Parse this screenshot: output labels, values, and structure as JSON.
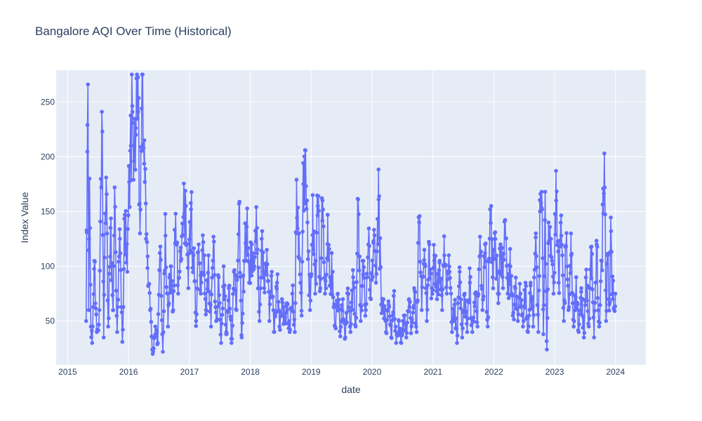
{
  "chart_data": {
    "type": "line",
    "mode": "lines+markers",
    "title": "Bangalore AQI Over Time (Historical)",
    "xlabel": "date",
    "ylabel": "Index Value",
    "x_ticks": [
      "2015",
      "2016",
      "2017",
      "2018",
      "2019",
      "2020",
      "2021",
      "2022",
      "2023",
      "2024"
    ],
    "y_ticks": [
      50,
      100,
      150,
      200,
      250
    ],
    "xlim": [
      "2014-10-24",
      "2024-07-01"
    ],
    "ylim": [
      10,
      279
    ],
    "grid": true,
    "legend": "none",
    "colors": {
      "series": "#636efa",
      "plot_bg": "#e5ecf6",
      "paper_bg": "#ffffff",
      "text": "#2a3f5f"
    },
    "series": [
      {
        "date_start": "2015-04-22",
        "date_end": "2023-12-31",
        "keypoints": [
          [
            "2015-04-22",
            50
          ],
          [
            "2015-04-26",
            131
          ],
          [
            "2015-04-30",
            229
          ],
          [
            "2015-05-03",
            266
          ],
          [
            "2015-05-07",
            60
          ],
          [
            "2015-05-12",
            180
          ],
          [
            "2015-05-20",
            45
          ],
          [
            "2015-05-28",
            30
          ],
          [
            "2015-06-10",
            105
          ],
          [
            "2015-06-25",
            40
          ],
          [
            "2015-07-10",
            60
          ],
          [
            "2015-07-25",
            241
          ],
          [
            "2015-08-05",
            35
          ],
          [
            "2015-08-20",
            181
          ],
          [
            "2015-09-01",
            45
          ],
          [
            "2015-09-15",
            135
          ],
          [
            "2015-10-01",
            60
          ],
          [
            "2015-10-10",
            172
          ],
          [
            "2015-10-25",
            40
          ],
          [
            "2015-11-10",
            125
          ],
          [
            "2015-11-25",
            31
          ],
          [
            "2015-12-10",
            147
          ],
          [
            "2015-12-25",
            95
          ],
          [
            "2016-01-05",
            177
          ],
          [
            "2016-01-15",
            210
          ],
          [
            "2016-01-25",
            241
          ],
          [
            "2016-02-05",
            210
          ],
          [
            "2016-02-15",
            220
          ],
          [
            "2016-02-28",
            241
          ],
          [
            "2016-03-10",
            130
          ],
          [
            "2016-03-20",
            244
          ],
          [
            "2016-04-05",
            215
          ],
          [
            "2016-04-15",
            125
          ],
          [
            "2016-04-25",
            109
          ],
          [
            "2016-05-10",
            60
          ],
          [
            "2016-05-25",
            20
          ],
          [
            "2016-06-10",
            45
          ],
          [
            "2016-06-25",
            30
          ],
          [
            "2016-07-10",
            118
          ],
          [
            "2016-07-25",
            22
          ],
          [
            "2016-08-10",
            128
          ],
          [
            "2016-08-25",
            45
          ],
          [
            "2016-09-10",
            100
          ],
          [
            "2016-09-25",
            60
          ],
          [
            "2016-10-10",
            148
          ],
          [
            "2016-10-25",
            75
          ],
          [
            "2016-11-10",
            105
          ],
          [
            "2016-11-25",
            145
          ],
          [
            "2016-12-10",
            155
          ],
          [
            "2016-12-25",
            80
          ],
          [
            "2017-01-10",
            152
          ],
          [
            "2017-01-25",
            110
          ],
          [
            "2017-02-10",
            50
          ],
          [
            "2017-02-25",
            120
          ],
          [
            "2017-03-10",
            75
          ],
          [
            "2017-03-25",
            122
          ],
          [
            "2017-04-10",
            60
          ],
          [
            "2017-04-25",
            110
          ],
          [
            "2017-05-10",
            45
          ],
          [
            "2017-05-25",
            127
          ],
          [
            "2017-06-10",
            50
          ],
          [
            "2017-06-25",
            90
          ],
          [
            "2017-07-10",
            30
          ],
          [
            "2017-07-25",
            100
          ],
          [
            "2017-08-10",
            40
          ],
          [
            "2017-08-25",
            80
          ],
          [
            "2017-09-10",
            30
          ],
          [
            "2017-09-25",
            95
          ],
          [
            "2017-10-10",
            60
          ],
          [
            "2017-10-25",
            157
          ],
          [
            "2017-11-10",
            35
          ],
          [
            "2017-11-25",
            105
          ],
          [
            "2017-12-10",
            136
          ],
          [
            "2017-12-25",
            85
          ],
          [
            "2018-01-10",
            120
          ],
          [
            "2018-01-25",
            100
          ],
          [
            "2018-02-10",
            135
          ],
          [
            "2018-02-25",
            50
          ],
          [
            "2018-03-10",
            125
          ],
          [
            "2018-03-25",
            80
          ],
          [
            "2018-04-10",
            115
          ],
          [
            "2018-04-25",
            50
          ],
          [
            "2018-05-10",
            95
          ],
          [
            "2018-05-25",
            40
          ],
          [
            "2018-06-10",
            85
          ],
          [
            "2018-06-25",
            45
          ],
          [
            "2018-07-10",
            70
          ],
          [
            "2018-07-25",
            50
          ],
          [
            "2018-08-10",
            60
          ],
          [
            "2018-08-25",
            40
          ],
          [
            "2018-09-10",
            75
          ],
          [
            "2018-09-25",
            40
          ],
          [
            "2018-10-05",
            179
          ],
          [
            "2018-10-20",
            130
          ],
          [
            "2018-11-05",
            55
          ],
          [
            "2018-11-15",
            175
          ],
          [
            "2018-11-25",
            206
          ],
          [
            "2018-12-10",
            140
          ],
          [
            "2018-12-25",
            60
          ],
          [
            "2019-01-10",
            165
          ],
          [
            "2019-01-25",
            75
          ],
          [
            "2019-02-10",
            155
          ],
          [
            "2019-02-25",
            80
          ],
          [
            "2019-03-10",
            160
          ],
          [
            "2019-03-25",
            75
          ],
          [
            "2019-04-10",
            147
          ],
          [
            "2019-04-25",
            90
          ],
          [
            "2019-05-10",
            95
          ],
          [
            "2019-05-25",
            45
          ],
          [
            "2019-06-10",
            75
          ],
          [
            "2019-06-25",
            36
          ],
          [
            "2019-07-10",
            70
          ],
          [
            "2019-07-25",
            35
          ],
          [
            "2019-08-10",
            75
          ],
          [
            "2019-08-25",
            40
          ],
          [
            "2019-09-10",
            90
          ],
          [
            "2019-09-25",
            45
          ],
          [
            "2019-10-10",
            161
          ],
          [
            "2019-10-25",
            50
          ],
          [
            "2019-11-10",
            105
          ],
          [
            "2019-11-25",
            60
          ],
          [
            "2019-12-10",
            120
          ],
          [
            "2019-12-25",
            70
          ],
          [
            "2020-01-10",
            123
          ],
          [
            "2020-01-25",
            85
          ],
          [
            "2020-02-10",
            161
          ],
          [
            "2020-02-25",
            65
          ],
          [
            "2020-03-10",
            70
          ],
          [
            "2020-03-25",
            40
          ],
          [
            "2020-04-10",
            65
          ],
          [
            "2020-04-25",
            35
          ],
          [
            "2020-05-10",
            73
          ],
          [
            "2020-05-25",
            30
          ],
          [
            "2020-06-10",
            50
          ],
          [
            "2020-06-25",
            30
          ],
          [
            "2020-07-10",
            55
          ],
          [
            "2020-07-25",
            35
          ],
          [
            "2020-08-10",
            70
          ],
          [
            "2020-08-25",
            45
          ],
          [
            "2020-09-10",
            80
          ],
          [
            "2020-09-25",
            40
          ],
          [
            "2020-10-10",
            140
          ],
          [
            "2020-10-25",
            60
          ],
          [
            "2020-11-10",
            115
          ],
          [
            "2020-11-25",
            50
          ],
          [
            "2020-12-10",
            120
          ],
          [
            "2020-12-25",
            80
          ],
          [
            "2021-01-10",
            110
          ],
          [
            "2021-01-25",
            70
          ],
          [
            "2021-02-10",
            105
          ],
          [
            "2021-02-25",
            60
          ],
          [
            "2021-03-10",
            110
          ],
          [
            "2021-03-25",
            75
          ],
          [
            "2021-04-10",
            95
          ],
          [
            "2021-04-25",
            40
          ],
          [
            "2021-05-10",
            65
          ],
          [
            "2021-05-25",
            30
          ],
          [
            "2021-06-10",
            95
          ],
          [
            "2021-06-25",
            35
          ],
          [
            "2021-07-10",
            75
          ],
          [
            "2021-07-25",
            40
          ],
          [
            "2021-08-10",
            85
          ],
          [
            "2021-08-25",
            40
          ],
          [
            "2021-09-10",
            75
          ],
          [
            "2021-09-25",
            45
          ],
          [
            "2021-10-10",
            127
          ],
          [
            "2021-10-25",
            60
          ],
          [
            "2021-11-10",
            120
          ],
          [
            "2021-11-25",
            45
          ],
          [
            "2021-12-10",
            152
          ],
          [
            "2021-12-25",
            90
          ],
          [
            "2022-01-10",
            125
          ],
          [
            "2022-01-25",
            75
          ],
          [
            "2022-02-10",
            120
          ],
          [
            "2022-02-25",
            80
          ],
          [
            "2022-03-10",
            142
          ],
          [
            "2022-03-25",
            75
          ],
          [
            "2022-04-10",
            100
          ],
          [
            "2022-04-25",
            55
          ],
          [
            "2022-05-10",
            80
          ],
          [
            "2022-05-25",
            50
          ],
          [
            "2022-06-10",
            75
          ],
          [
            "2022-06-25",
            45
          ],
          [
            "2022-07-10",
            85
          ],
          [
            "2022-07-25",
            40
          ],
          [
            "2022-08-10",
            85
          ],
          [
            "2022-08-25",
            45
          ],
          [
            "2022-09-10",
            130
          ],
          [
            "2022-09-25",
            40
          ],
          [
            "2022-10-05",
            150
          ],
          [
            "2022-10-15",
            168
          ],
          [
            "2022-10-25",
            38
          ],
          [
            "2022-11-05",
            168
          ],
          [
            "2022-11-15",
            24
          ],
          [
            "2022-11-25",
            140
          ],
          [
            "2022-12-10",
            125
          ],
          [
            "2022-12-25",
            75
          ],
          [
            "2023-01-10",
            160
          ],
          [
            "2023-01-25",
            85
          ],
          [
            "2023-02-10",
            128
          ],
          [
            "2023-02-25",
            50
          ],
          [
            "2023-03-10",
            118
          ],
          [
            "2023-03-25",
            60
          ],
          [
            "2023-04-10",
            110
          ],
          [
            "2023-04-25",
            45
          ],
          [
            "2023-05-10",
            90
          ],
          [
            "2023-05-25",
            40
          ],
          [
            "2023-06-10",
            80
          ],
          [
            "2023-06-25",
            35
          ],
          [
            "2023-07-10",
            97
          ],
          [
            "2023-07-25",
            45
          ],
          [
            "2023-08-10",
            118
          ],
          [
            "2023-08-25",
            35
          ],
          [
            "2023-09-10",
            120
          ],
          [
            "2023-09-25",
            45
          ],
          [
            "2023-10-10",
            105
          ],
          [
            "2023-10-20",
            148
          ],
          [
            "2023-10-28",
            172
          ],
          [
            "2023-11-05",
            50
          ],
          [
            "2023-11-15",
            110
          ],
          [
            "2023-11-25",
            65
          ],
          [
            "2023-12-05",
            132
          ],
          [
            "2023-12-15",
            70
          ],
          [
            "2023-12-31",
            75
          ]
        ]
      }
    ]
  }
}
